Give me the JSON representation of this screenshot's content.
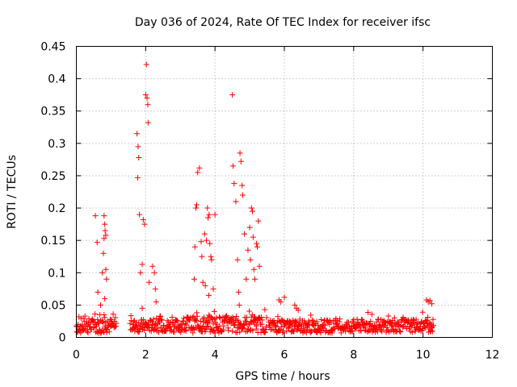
{
  "chart_data": {
    "type": "scatter",
    "title": "Day 036 of 2024, Rate Of TEC Index for receiver ifsc",
    "xlabel": "GPS time / hours",
    "ylabel": "ROTI / TECUs",
    "xlim": [
      0,
      12
    ],
    "ylim": [
      0,
      0.45
    ],
    "x_ticks": [
      0,
      2,
      4,
      6,
      8,
      10,
      12
    ],
    "x_tick_labels": [
      "0",
      "2",
      "4",
      "6",
      "8",
      "10",
      "12"
    ],
    "y_ticks": [
      0,
      0.05,
      0.1,
      0.15,
      0.2,
      0.25,
      0.3,
      0.35,
      0.4,
      0.45
    ],
    "y_tick_labels": [
      "0",
      "0.05",
      "0.1",
      "0.15",
      "0.2",
      "0.25",
      "0.3",
      "0.35",
      "0.4",
      "0.45"
    ],
    "grid": true,
    "marker": "plus",
    "marker_color": "#ff0000",
    "segments": [
      {
        "x_start": 0.0,
        "x_end": 1.15,
        "median": 0.018,
        "spread": 0.012
      },
      {
        "x_start": 1.55,
        "x_end": 3.1,
        "median": 0.018,
        "spread": 0.01
      },
      {
        "x_start": 3.1,
        "x_end": 5.5,
        "median": 0.02,
        "spread": 0.013
      },
      {
        "x_start": 5.55,
        "x_end": 8.0,
        "median": 0.017,
        "spread": 0.01
      },
      {
        "x_start": 8.0,
        "x_end": 10.3,
        "median": 0.018,
        "spread": 0.01
      }
    ],
    "series": [
      {
        "name": "ROTI",
        "x": [
          0.55,
          0.6,
          0.62,
          0.68,
          0.7,
          0.75,
          0.78,
          0.8,
          0.8,
          0.82,
          0.83,
          0.85,
          0.85,
          0.87,
          0.82,
          0.8,
          1.75,
          1.78,
          1.8,
          1.82,
          1.85,
          1.9,
          1.93,
          1.97,
          2.0,
          2.02,
          2.04,
          2.06,
          2.07,
          2.1,
          1.77,
          1.9,
          2.2,
          2.25,
          2.28,
          2.3,
          3.4,
          3.42,
          3.45,
          3.47,
          3.5,
          3.55,
          3.6,
          3.62,
          3.65,
          3.7,
          3.75,
          3.78,
          3.8,
          3.83,
          3.85,
          3.88,
          3.9,
          3.95,
          3.98,
          4.0,
          3.72,
          3.82,
          4.5,
          4.52,
          4.55,
          4.6,
          4.65,
          4.68,
          4.7,
          4.72,
          4.75,
          4.78,
          4.8,
          4.85,
          4.9,
          4.95,
          5.0,
          5.02,
          5.05,
          5.08,
          5.1,
          5.12,
          5.15,
          5.2,
          5.22,
          5.25,
          5.28,
          5.85,
          5.9,
          6.0,
          6.3,
          6.35,
          6.4,
          10.1,
          10.15,
          10.2,
          10.25
        ],
        "y": [
          0.188,
          0.147,
          0.07,
          0.035,
          0.05,
          0.1,
          0.13,
          0.153,
          0.188,
          0.175,
          0.165,
          0.158,
          0.105,
          0.09,
          0.06,
          0.035,
          0.315,
          0.295,
          0.278,
          0.19,
          0.1,
          0.113,
          0.182,
          0.175,
          0.375,
          0.422,
          0.37,
          0.36,
          0.332,
          0.085,
          0.247,
          0.045,
          0.11,
          0.1,
          0.075,
          0.055,
          0.09,
          0.14,
          0.2,
          0.205,
          0.255,
          0.262,
          0.148,
          0.125,
          0.085,
          0.16,
          0.15,
          0.2,
          0.185,
          0.19,
          0.145,
          0.125,
          0.12,
          0.075,
          0.04,
          0.19,
          0.08,
          0.065,
          0.375,
          0.265,
          0.238,
          0.21,
          0.12,
          0.07,
          0.05,
          0.285,
          0.272,
          0.235,
          0.22,
          0.16,
          0.09,
          0.135,
          0.17,
          0.12,
          0.2,
          0.195,
          0.155,
          0.105,
          0.09,
          0.145,
          0.14,
          0.18,
          0.11,
          0.058,
          0.055,
          0.062,
          0.05,
          0.045,
          0.042,
          0.058,
          0.055,
          0.057,
          0.052
        ]
      }
    ]
  }
}
